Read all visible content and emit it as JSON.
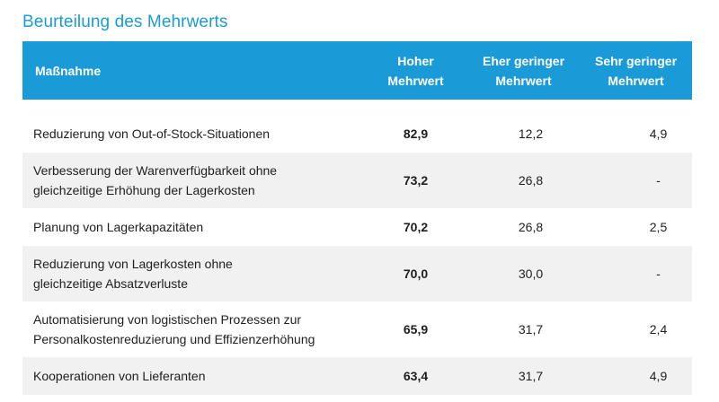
{
  "title": "Beurteilung des Mehrwerts",
  "chart_data": {
    "type": "table",
    "columns": [
      "Maßnahme",
      "Hoher Mehrwert",
      "Eher geringer Mehrwert",
      "Sehr geringer Mehrwert"
    ],
    "header_lines": [
      [
        "Maßnahme"
      ],
      [
        "Hoher",
        "Mehrwert"
      ],
      [
        "Eher geringer",
        "Mehrwert"
      ],
      [
        "Sehr geringer",
        "Mehrwert"
      ]
    ],
    "rows": [
      {
        "label": [
          "Reduzierung von Out-of-Stock-Situationen"
        ],
        "values": [
          "82,9",
          "12,2",
          "4,9"
        ]
      },
      {
        "label": [
          "Verbesserung der Warenverfügbarkeit ohne",
          "gleichzeitige Erhöhung der Lagerkosten"
        ],
        "values": [
          "73,2",
          "26,8",
          "-"
        ]
      },
      {
        "label": [
          "Planung von Lagerkapazitäten"
        ],
        "values": [
          "70,2",
          "26,8",
          "2,5"
        ]
      },
      {
        "label": [
          "Reduzierung von Lagerkosten ohne",
          "gleichzeitige Absatzverluste"
        ],
        "values": [
          "70,0",
          "30,0",
          "-"
        ]
      },
      {
        "label": [
          "Automatisierung von logistischen Prozessen zur",
          "Personalkostenreduzierung und Effizienzerhöhung"
        ],
        "values": [
          "65,9",
          "31,7",
          "2,4"
        ]
      },
      {
        "label": [
          "Kooperationen von Lieferanten"
        ],
        "values": [
          "63,4",
          "31,7",
          "4,9"
        ]
      }
    ]
  },
  "colors": {
    "accent": "#1a9bd7",
    "header_text": "#ffffff",
    "alt_row": "#f1f1f1",
    "text": "#1e1e1e"
  }
}
